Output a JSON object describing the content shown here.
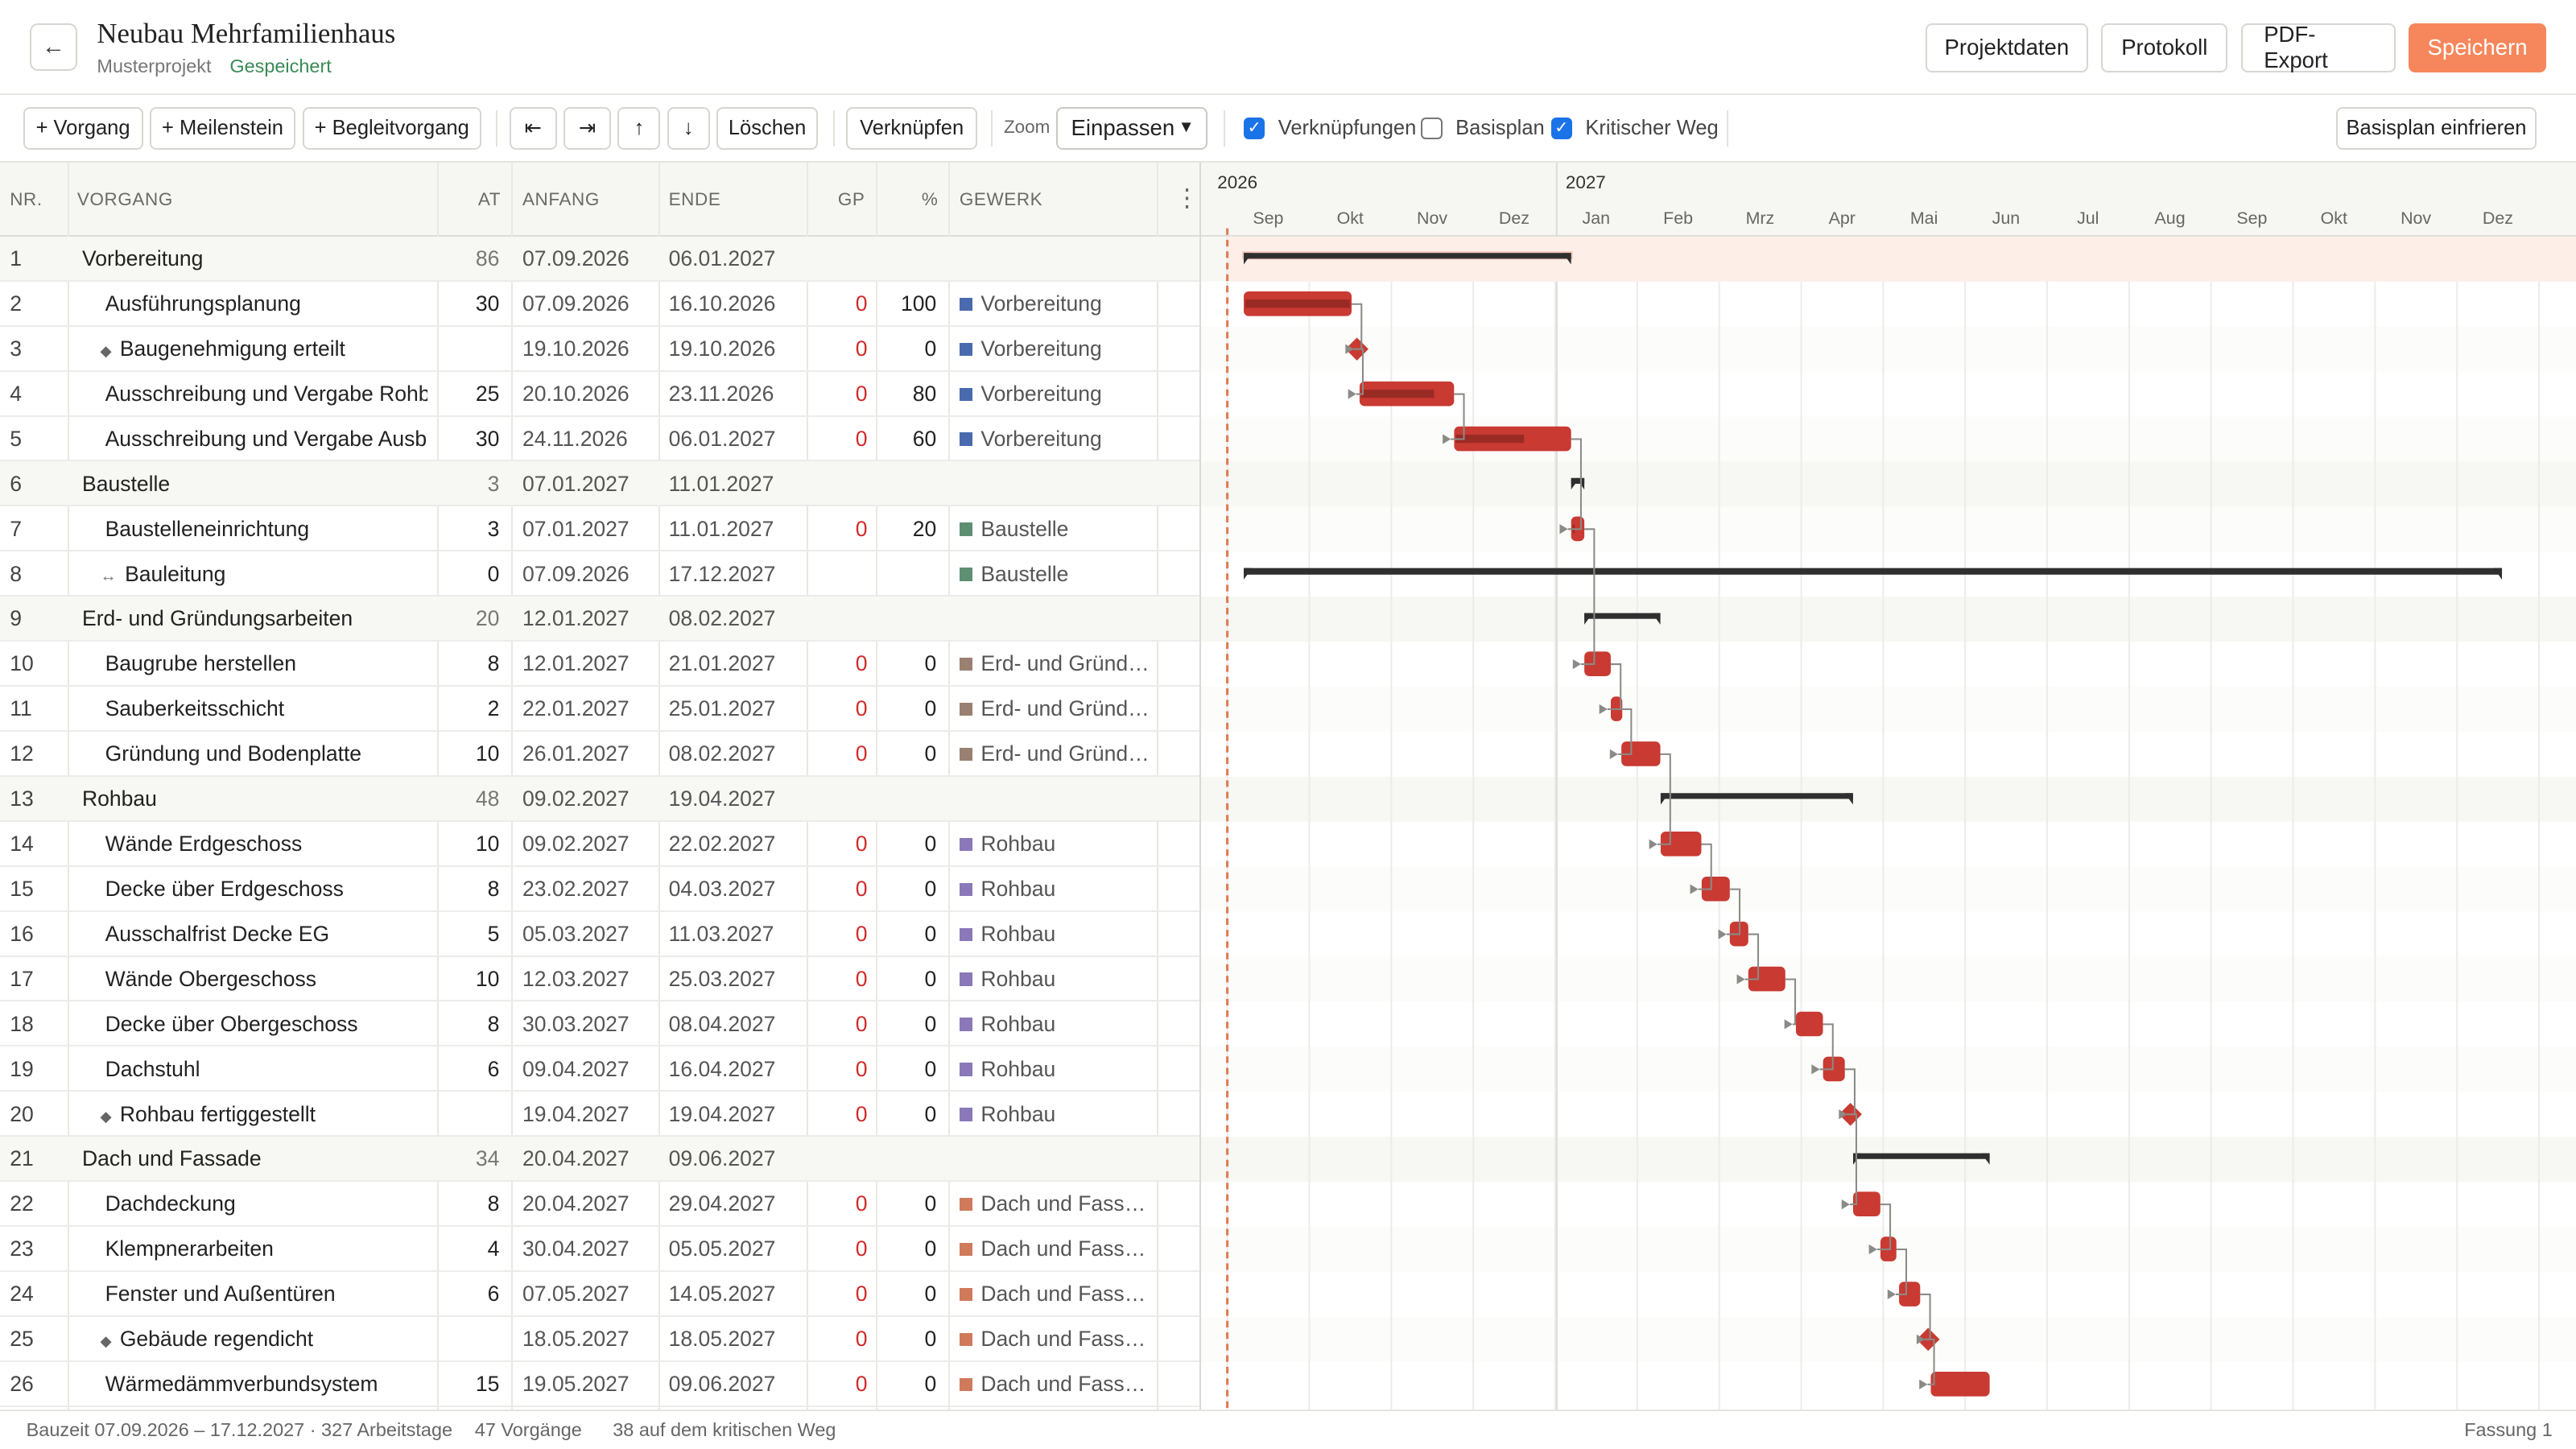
{
  "header": {
    "back_icon": "arrow-left-icon",
    "back_label": "←",
    "title": "Neubau Mehrfamilienhaus",
    "project_type": "Musterprojekt",
    "save_status": "Gespeichert",
    "buttons": {
      "projektdaten": "Projektdaten",
      "protokoll": "Protokoll",
      "pdf_export": "PDF-Export",
      "speichern": "Speichern"
    },
    "accent_color": "#f6875c"
  },
  "toolbar": {
    "add_vorgang": "+ Vorgang",
    "add_meilenstein": "+ Meilenstein",
    "add_begleitvorgang": "+ Begleitvorgang",
    "indent_label": "⇤",
    "outdent_label": "⇥",
    "move_up_label": "↑",
    "move_down_label": "↓",
    "loeschen": "Löschen",
    "verknuepfen": "Verknüpfen",
    "zoom_label": "Zoom",
    "zoom_value": "Einpassen",
    "cb_verknuepfungen": "Verknüpfungen",
    "cb_verknuepfungen_checked": true,
    "cb_basisplan": "Basisplan",
    "cb_basisplan_checked": false,
    "cb_kritischer_weg": "Kritischer Weg",
    "cb_kritischer_weg_checked": true,
    "basisplan_einfrieren": "Basisplan einfrieren"
  },
  "table": {
    "columns": {
      "nr": "NR.",
      "vorgang": "VORGANG",
      "at": "AT",
      "anfang": "ANFANG",
      "ende": "ENDE",
      "gp": "GP",
      "pct": "%",
      "gewerk": "GEWERK",
      "menu": "⋮"
    },
    "rows": [
      {
        "nr": "1",
        "name": "Vorbereitung",
        "at": "86",
        "start": "07.09.2026",
        "end": "06.01.2027",
        "gp": "",
        "pct": "",
        "gewerk": "",
        "type": "summary",
        "level": 0
      },
      {
        "nr": "2",
        "name": "Ausführungsplanung",
        "at": "30",
        "start": "07.09.2026",
        "end": "16.10.2026",
        "gp": "0",
        "pct": "100",
        "gewerk": "Vorbereitung",
        "type": "task",
        "level": 1
      },
      {
        "nr": "3",
        "name": "Baugenehmigung erteilt",
        "at": "",
        "start": "19.10.2026",
        "end": "19.10.2026",
        "gp": "0",
        "pct": "0",
        "gewerk": "Vorbereitung",
        "type": "milestone",
        "level": 1
      },
      {
        "nr": "4",
        "name": "Ausschreibung und Vergabe Rohbau",
        "at": "25",
        "start": "20.10.2026",
        "end": "23.11.2026",
        "gp": "0",
        "pct": "80",
        "gewerk": "Vorbereitung",
        "type": "task",
        "level": 1
      },
      {
        "nr": "5",
        "name": "Ausschreibung und Vergabe Ausbau",
        "at": "30",
        "start": "24.11.2026",
        "end": "06.01.2027",
        "gp": "0",
        "pct": "60",
        "gewerk": "Vorbereitung",
        "type": "task",
        "level": 1
      },
      {
        "nr": "6",
        "name": "Baustelle",
        "at": "3",
        "start": "07.01.2027",
        "end": "11.01.2027",
        "gp": "",
        "pct": "",
        "gewerk": "",
        "type": "summary",
        "level": 0
      },
      {
        "nr": "7",
        "name": "Baustelleneinrichtung",
        "at": "3",
        "start": "07.01.2027",
        "end": "11.01.2027",
        "gp": "0",
        "pct": "20",
        "gewerk": "Baustelle",
        "type": "task",
        "level": 1
      },
      {
        "nr": "8",
        "name": "Bauleitung",
        "at": "0",
        "start": "07.09.2026",
        "end": "17.12.2027",
        "gp": "",
        "pct": "",
        "gewerk": "Baustelle",
        "type": "accompanying",
        "level": 1
      },
      {
        "nr": "9",
        "name": "Erd- und Gründungsarbeiten",
        "at": "20",
        "start": "12.01.2027",
        "end": "08.02.2027",
        "gp": "",
        "pct": "",
        "gewerk": "",
        "type": "summary",
        "level": 0
      },
      {
        "nr": "10",
        "name": "Baugrube herstellen",
        "at": "8",
        "start": "12.01.2027",
        "end": "21.01.2027",
        "gp": "0",
        "pct": "0",
        "gewerk": "Erd- und Gründungsarbeiten",
        "type": "task",
        "level": 1
      },
      {
        "nr": "11",
        "name": "Sauberkeitsschicht",
        "at": "2",
        "start": "22.01.2027",
        "end": "25.01.2027",
        "gp": "0",
        "pct": "0",
        "gewerk": "Erd- und Gründungsarbeiten",
        "type": "task",
        "level": 1
      },
      {
        "nr": "12",
        "name": "Gründung und Bodenplatte",
        "at": "10",
        "start": "26.01.2027",
        "end": "08.02.2027",
        "gp": "0",
        "pct": "0",
        "gewerk": "Erd- und Gründungsarbeiten",
        "type": "task",
        "level": 1
      },
      {
        "nr": "13",
        "name": "Rohbau",
        "at": "48",
        "start": "09.02.2027",
        "end": "19.04.2027",
        "gp": "",
        "pct": "",
        "gewerk": "",
        "type": "summary",
        "level": 0
      },
      {
        "nr": "14",
        "name": "Wände Erdgeschoss",
        "at": "10",
        "start": "09.02.2027",
        "end": "22.02.2027",
        "gp": "0",
        "pct": "0",
        "gewerk": "Rohbau",
        "type": "task",
        "level": 1
      },
      {
        "nr": "15",
        "name": "Decke über Erdgeschoss",
        "at": "8",
        "start": "23.02.2027",
        "end": "04.03.2027",
        "gp": "0",
        "pct": "0",
        "gewerk": "Rohbau",
        "type": "task",
        "level": 1
      },
      {
        "nr": "16",
        "name": "Ausschalfrist Decke EG",
        "at": "5",
        "start": "05.03.2027",
        "end": "11.03.2027",
        "gp": "0",
        "pct": "0",
        "gewerk": "Rohbau",
        "type": "task",
        "level": 1
      },
      {
        "nr": "17",
        "name": "Wände Obergeschoss",
        "at": "10",
        "start": "12.03.2027",
        "end": "25.03.2027",
        "gp": "0",
        "pct": "0",
        "gewerk": "Rohbau",
        "type": "task",
        "level": 1
      },
      {
        "nr": "18",
        "name": "Decke über Obergeschoss",
        "at": "8",
        "start": "30.03.2027",
        "end": "08.04.2027",
        "gp": "0",
        "pct": "0",
        "gewerk": "Rohbau",
        "type": "task",
        "level": 1
      },
      {
        "nr": "19",
        "name": "Dachstuhl",
        "at": "6",
        "start": "09.04.2027",
        "end": "16.04.2027",
        "gp": "0",
        "pct": "0",
        "gewerk": "Rohbau",
        "type": "task",
        "level": 1
      },
      {
        "nr": "20",
        "name": "Rohbau fertiggestellt",
        "at": "",
        "start": "19.04.2027",
        "end": "19.04.2027",
        "gp": "0",
        "pct": "0",
        "gewerk": "Rohbau",
        "type": "milestone",
        "level": 1
      },
      {
        "nr": "21",
        "name": "Dach und Fassade",
        "at": "34",
        "start": "20.04.2027",
        "end": "09.06.2027",
        "gp": "",
        "pct": "",
        "gewerk": "",
        "type": "summary",
        "level": 0
      },
      {
        "nr": "22",
        "name": "Dachdeckung",
        "at": "8",
        "start": "20.04.2027",
        "end": "29.04.2027",
        "gp": "0",
        "pct": "0",
        "gewerk": "Dach und Fassade",
        "type": "task",
        "level": 1
      },
      {
        "nr": "23",
        "name": "Klempnerarbeiten",
        "at": "4",
        "start": "30.04.2027",
        "end": "05.05.2027",
        "gp": "0",
        "pct": "0",
        "gewerk": "Dach und Fassade",
        "type": "task",
        "level": 1
      },
      {
        "nr": "24",
        "name": "Fenster und Außentüren",
        "at": "6",
        "start": "07.05.2027",
        "end": "14.05.2027",
        "gp": "0",
        "pct": "0",
        "gewerk": "Dach und Fassade",
        "type": "task",
        "level": 1
      },
      {
        "nr": "25",
        "name": "Gebäude regendicht",
        "at": "",
        "start": "18.05.2027",
        "end": "18.05.2027",
        "gp": "0",
        "pct": "0",
        "gewerk": "Dach und Fassade",
        "type": "milestone",
        "level": 1
      },
      {
        "nr": "26",
        "name": "Wärmedämmverbundsystem",
        "at": "15",
        "start": "19.05.2027",
        "end": "09.06.2027",
        "gp": "0",
        "pct": "0",
        "gewerk": "Dach und Fassade",
        "type": "task",
        "level": 1
      }
    ]
  },
  "gewerk_colors": {
    "Vorbereitung": "#4a6ab0",
    "Baustelle": "#5f8f73",
    "Erd- und Gründungsarbeiten": "#9a8070",
    "Rohbau": "#8a78b8",
    "Dach und Fassade": "#d07a5c"
  },
  "timeline": {
    "years": [
      "2026",
      "2027"
    ],
    "months": [
      "Sep",
      "Okt",
      "Nov",
      "Dez",
      "Jan",
      "Feb",
      "Mrz",
      "Apr",
      "Mai",
      "Jun",
      "Jul",
      "Aug",
      "Sep",
      "Okt",
      "Nov",
      "Dez"
    ],
    "today_date": "07.09.2026",
    "colors": {
      "critical_bar": "#c93a32",
      "progress": "#9a2a24",
      "summary_bar": "#2f2f2f",
      "summary_critical_bg": "#fdeee8",
      "today_line": "#e07a55"
    }
  },
  "status": {
    "bauzeit": "Bauzeit 07.09.2026 – 17.12.2027 · 327 Arbeitstage",
    "vorgaenge": "47 Vorgänge",
    "kritisch": "38 auf dem kritischen Weg",
    "fassung": "Fassung 1"
  }
}
